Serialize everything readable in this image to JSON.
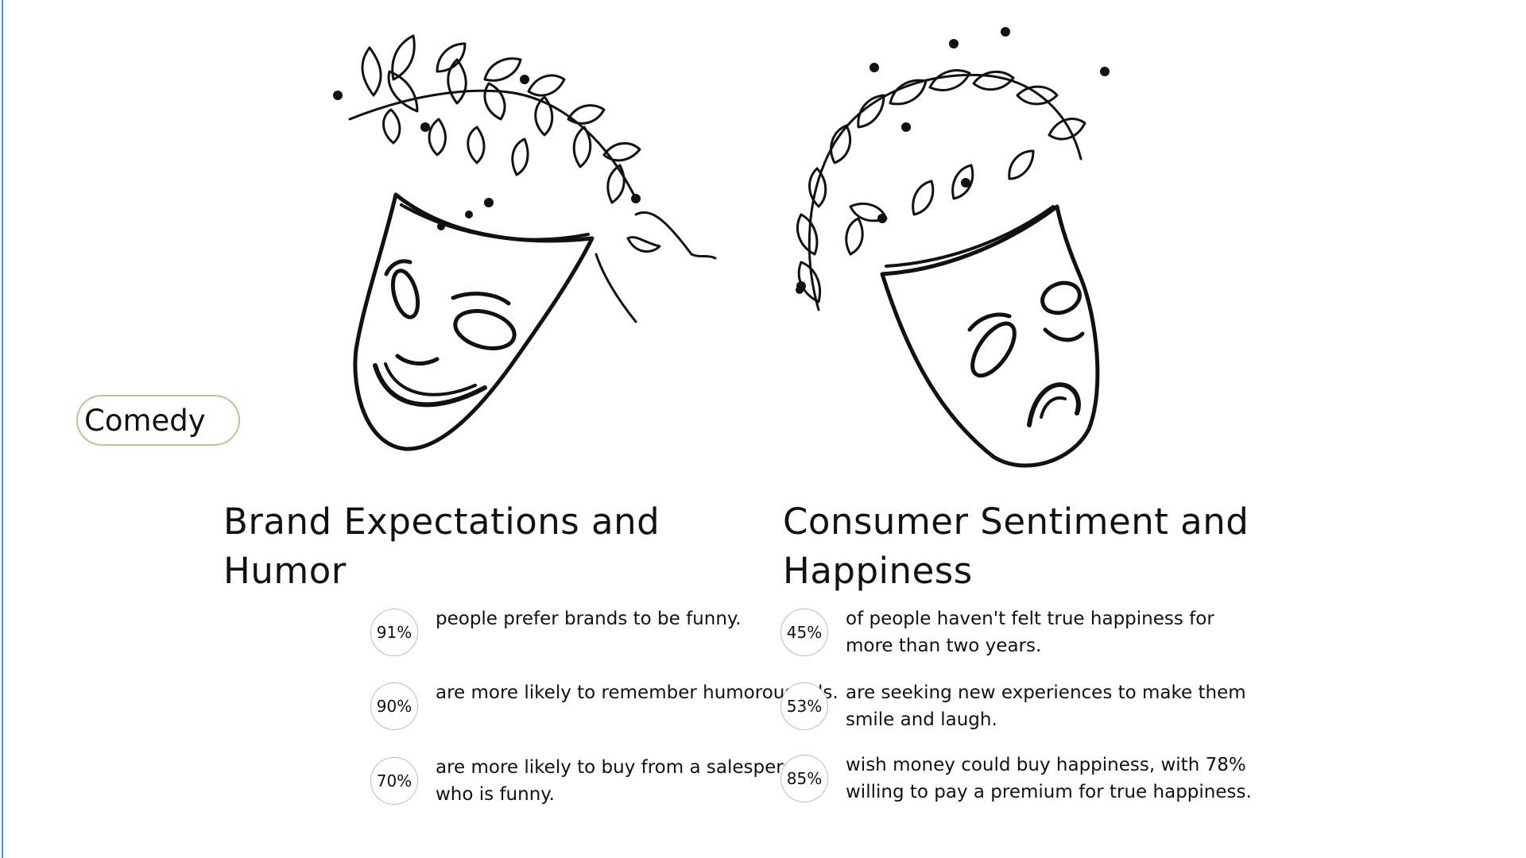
{
  "tag": {
    "label": "Comedy"
  },
  "left": {
    "title_line1": "Brand Expectations and",
    "title_line2": "Humor",
    "stats": [
      {
        "value": "91%",
        "text": "people prefer brands to be funny."
      },
      {
        "value": "90%",
        "text": "are more likely to remember humorous ads."
      },
      {
        "value": "70%",
        "text": "are more likely to buy from a salesperson who is funny."
      }
    ]
  },
  "right": {
    "title_line1": "Consumer Sentiment and",
    "title_line2": "Happiness",
    "stats": [
      {
        "value": "45%",
        "text": "of people haven't felt true happiness for more than two years."
      },
      {
        "value": "53%",
        "text": "are seeking new experiences to make them smile and laugh."
      },
      {
        "value": "85%",
        "text": "wish money could buy happiness, with 78% willing to pay a premium for true happiness."
      }
    ]
  },
  "colors": {
    "accent_rule": "#4a8fe0",
    "tag_border": "#a9d08e",
    "ink": "#111111"
  },
  "illustrations": [
    "comedy-mask-icon",
    "tragedy-mask-icon"
  ]
}
